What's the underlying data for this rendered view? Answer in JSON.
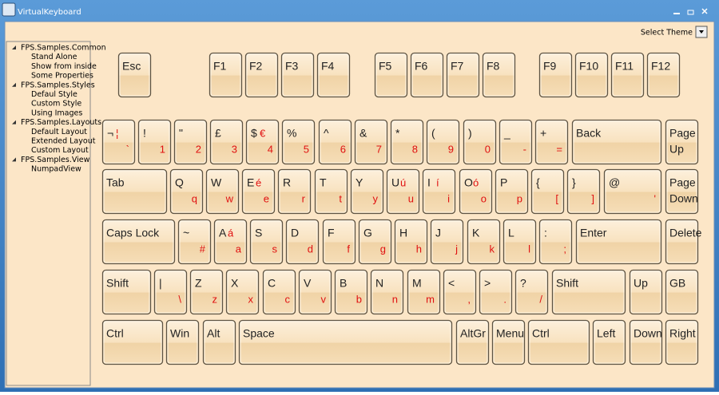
{
  "window": {
    "title": "VirtualKeyboard"
  },
  "theme_selector": {
    "label": "Select Theme"
  },
  "tree": {
    "nodes": [
      {
        "label": "FPS.Samples.Common",
        "children": [
          "Stand Alone",
          "Show from inside",
          "Some Properties"
        ]
      },
      {
        "label": "FPS.Samples.Styles",
        "children": [
          "Defaul Style",
          "Custom Style",
          "Using Images"
        ]
      },
      {
        "label": "FPS.Samples.Layouts",
        "children": [
          "Default Layout",
          "Extended Layout",
          "Custom Layout"
        ]
      },
      {
        "label": "FPS.Samples.View",
        "children": [
          "NumpadView"
        ]
      }
    ]
  },
  "keyboard": {
    "rows": [
      {
        "keys": [
          {
            "label": "Esc"
          },
          {
            "label": "F1"
          },
          {
            "label": "F2"
          },
          {
            "label": "F3"
          },
          {
            "label": "F4"
          },
          {
            "label": "F5"
          },
          {
            "label": "F6"
          },
          {
            "label": "F7"
          },
          {
            "label": "F8"
          },
          {
            "label": "F9"
          },
          {
            "label": "F10"
          },
          {
            "label": "F11"
          },
          {
            "label": "F12"
          }
        ]
      },
      {
        "keys": [
          {
            "upper": "¬",
            "alt": "¦",
            "lower": "`"
          },
          {
            "upper": "!",
            "lower": "1"
          },
          {
            "upper": "\"",
            "lower": "2"
          },
          {
            "upper": "£",
            "lower": "3"
          },
          {
            "upper": "$",
            "alt": "€",
            "lower": "4"
          },
          {
            "upper": "%",
            "lower": "5"
          },
          {
            "upper": "^",
            "lower": "6"
          },
          {
            "upper": "&",
            "lower": "7"
          },
          {
            "upper": "*",
            "lower": "8"
          },
          {
            "upper": "(",
            "lower": "9"
          },
          {
            "upper": ")",
            "lower": "0"
          },
          {
            "upper": "_",
            "lower": "-"
          },
          {
            "upper": "+",
            "lower": "="
          },
          {
            "label": "Back"
          },
          {
            "lines": [
              "Page",
              "Up"
            ]
          }
        ]
      },
      {
        "keys": [
          {
            "label": "Tab"
          },
          {
            "upper": "Q",
            "lower": "q"
          },
          {
            "upper": "W",
            "lower": "w"
          },
          {
            "upper": "E",
            "alt": "é",
            "lower": "e"
          },
          {
            "upper": "R",
            "lower": "r"
          },
          {
            "upper": "T",
            "lower": "t"
          },
          {
            "upper": "Y",
            "lower": "y"
          },
          {
            "upper": "U",
            "alt": "ú",
            "lower": "u"
          },
          {
            "upper": "I",
            "alt": "í",
            "lower": "i"
          },
          {
            "upper": "O",
            "alt": "ó",
            "lower": "o"
          },
          {
            "upper": "P",
            "lower": "p"
          },
          {
            "upper": "{",
            "lower": "["
          },
          {
            "upper": "}",
            "lower": "]"
          },
          {
            "upper": "@",
            "lower": "'"
          },
          {
            "lines": [
              "Page",
              "Down"
            ]
          }
        ]
      },
      {
        "keys": [
          {
            "label": "Caps Lock"
          },
          {
            "upper": "~",
            "lower": "#"
          },
          {
            "upper": "A",
            "alt": "á",
            "lower": "a"
          },
          {
            "upper": "S",
            "lower": "s"
          },
          {
            "upper": "D",
            "lower": "d"
          },
          {
            "upper": "F",
            "lower": "f"
          },
          {
            "upper": "G",
            "lower": "g"
          },
          {
            "upper": "H",
            "lower": "h"
          },
          {
            "upper": "J",
            "lower": "j"
          },
          {
            "upper": "K",
            "lower": "k"
          },
          {
            "upper": "L",
            "lower": "l"
          },
          {
            "upper": ":",
            "lower": ";"
          },
          {
            "label": "Enter"
          },
          {
            "label": "Delete"
          }
        ]
      },
      {
        "keys": [
          {
            "label": "Shift"
          },
          {
            "upper": "|",
            "lower": "\\"
          },
          {
            "upper": "Z",
            "lower": "z"
          },
          {
            "upper": "X",
            "lower": "x"
          },
          {
            "upper": "C",
            "lower": "c"
          },
          {
            "upper": "V",
            "lower": "v"
          },
          {
            "upper": "B",
            "lower": "b"
          },
          {
            "upper": "N",
            "lower": "n"
          },
          {
            "upper": "M",
            "lower": "m"
          },
          {
            "upper": "<",
            "lower": ","
          },
          {
            "upper": ">",
            "lower": "."
          },
          {
            "upper": "?",
            "lower": "/"
          },
          {
            "label": "Shift"
          },
          {
            "label": "Up"
          },
          {
            "label": "GB"
          }
        ]
      },
      {
        "keys": [
          {
            "label": "Ctrl"
          },
          {
            "label": "Win"
          },
          {
            "label": "Alt"
          },
          {
            "label": "Space"
          },
          {
            "label": "AltGr"
          },
          {
            "label": "Menu"
          },
          {
            "label": "Ctrl"
          },
          {
            "label": "Left"
          },
          {
            "label": "Down"
          },
          {
            "label": "Right"
          }
        ]
      }
    ]
  }
}
